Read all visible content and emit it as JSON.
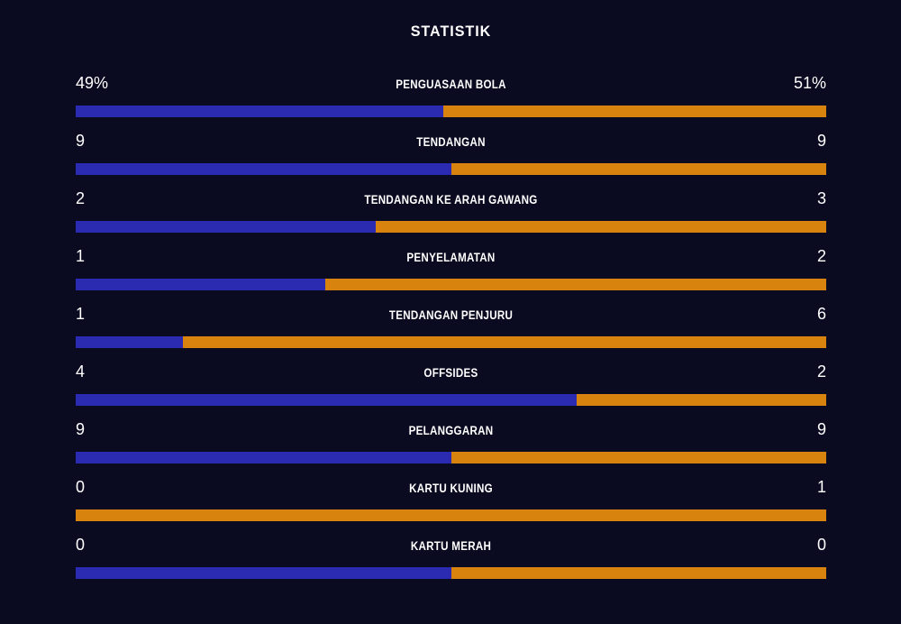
{
  "title": "STATISTIK",
  "colors": {
    "background": "#0A0A21",
    "home_bar": "#2B2BB2",
    "away_bar": "#D9830F",
    "text": "#FFFFFF"
  },
  "chart_data": {
    "type": "bar",
    "variant": "horizontal-stacked-comparison",
    "title": "STATISTIK",
    "legend_position": "none",
    "grid": false,
    "series_names": [
      "home",
      "away"
    ],
    "rows": [
      {
        "label": "PENGUASAAN BOLA",
        "home_value": "49%",
        "away_value": "51%",
        "home_pct": 49
      },
      {
        "label": "TENDANGAN",
        "home_value": "9",
        "away_value": "9",
        "home_pct": 50
      },
      {
        "label": "TENDANGAN KE ARAH GAWANG",
        "home_value": "2",
        "away_value": "3",
        "home_pct": 40
      },
      {
        "label": "PENYELAMATAN",
        "home_value": "1",
        "away_value": "2",
        "home_pct": 33.3
      },
      {
        "label": "TENDANGAN PENJURU",
        "home_value": "1",
        "away_value": "6",
        "home_pct": 14.3
      },
      {
        "label": "OFFSIDES",
        "home_value": "4",
        "away_value": "2",
        "home_pct": 66.7
      },
      {
        "label": "PELANGGARAN",
        "home_value": "9",
        "away_value": "9",
        "home_pct": 50
      },
      {
        "label": "KARTU KUNING",
        "home_value": "0",
        "away_value": "1",
        "home_pct": 0
      },
      {
        "label": "KARTU MERAH",
        "home_value": "0",
        "away_value": "0",
        "home_pct": 50
      }
    ]
  }
}
